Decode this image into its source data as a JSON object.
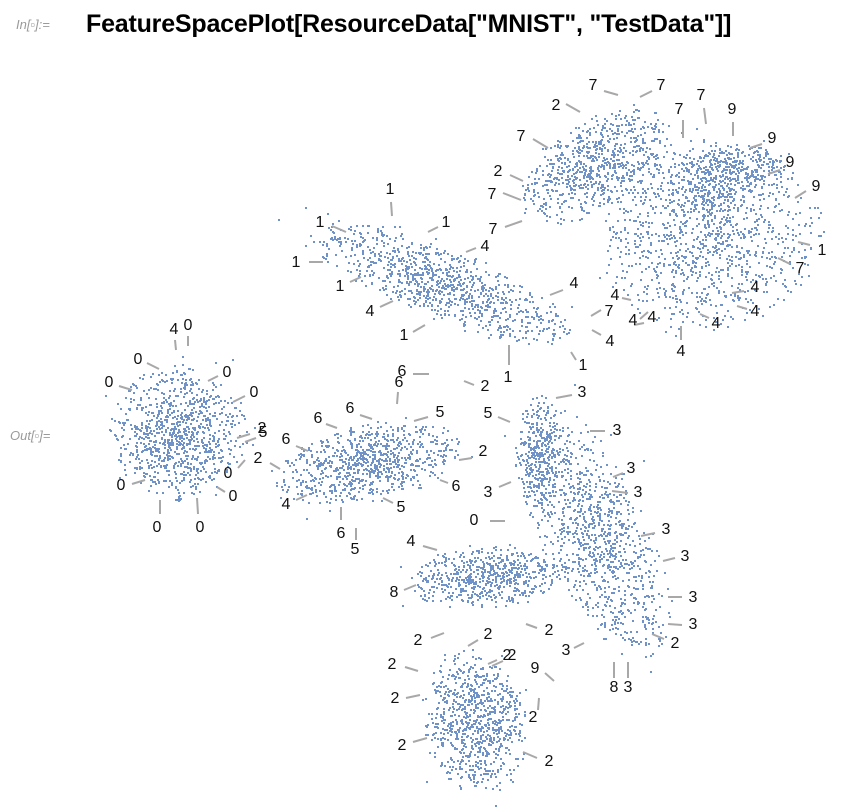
{
  "notebook": {
    "input_label": "In[▫]:=",
    "input_code": "FeatureSpacePlot[ResourceData[\"MNIST\", \"TestData\"]]",
    "output_label": "Out[▫]="
  },
  "colors": {
    "point": "#6f93c8",
    "leader": "#a8a8a8",
    "label": "#111111",
    "cell_label": "#9a9a9a"
  },
  "chart_data": {
    "type": "scatter",
    "title": "",
    "xlabel": "",
    "ylabel": "",
    "grid": false,
    "clusters": [
      {
        "digit": "0"
      },
      {
        "digit": "1"
      },
      {
        "digit": "2"
      },
      {
        "digit": "3"
      },
      {
        "digit": "4"
      },
      {
        "digit": "5"
      },
      {
        "digit": "6"
      },
      {
        "digit": "7"
      },
      {
        "digit": "8"
      },
      {
        "digit": "9"
      }
    ],
    "annotations": [
      "7",
      "7",
      "2",
      "7",
      "7",
      "7",
      "9",
      "9",
      "9",
      "2",
      "7",
      "7",
      "9",
      "1",
      "1",
      "1",
      "1",
      "4",
      "1",
      "1",
      "4",
      "7",
      "4",
      "7",
      "1",
      "4",
      "4",
      "4",
      "4",
      "1",
      "4",
      "4",
      "4",
      "4",
      "0",
      "4",
      "0",
      "0",
      "0",
      "0",
      "6",
      "2",
      "1",
      "6",
      "3",
      "5",
      "6",
      "6",
      "5",
      "5",
      "2",
      "0",
      "6",
      "2",
      "6",
      "0",
      "0",
      "0",
      "2",
      "0",
      "4",
      "6",
      "5",
      "3",
      "5",
      "3",
      "0",
      "3",
      "4",
      "3",
      "8",
      "3",
      "3",
      "2",
      "2",
      "3",
      "3",
      "2",
      "9",
      "2",
      "3",
      "2",
      "8",
      "3",
      "2",
      "2",
      "2",
      "2",
      "2",
      "2"
    ]
  }
}
